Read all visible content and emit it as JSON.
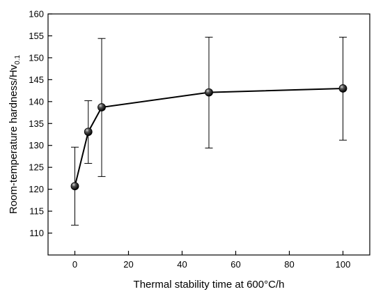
{
  "chart_data": {
    "type": "line",
    "title": "",
    "xlabel": "Thermal stability time at 600°C/h",
    "ylabel": {
      "main": "Room-temperature hardness/Hv",
      "subscript": "0.1"
    },
    "xlim": [
      -10,
      110
    ],
    "ylim": [
      105,
      160
    ],
    "x_ticks": [
      0,
      20,
      40,
      60,
      80,
      100
    ],
    "y_ticks": [
      110,
      115,
      120,
      125,
      130,
      135,
      140,
      145,
      150,
      155,
      160
    ],
    "grid": false,
    "legend": "none",
    "line_color": "#000000",
    "marker": "filled-sphere",
    "series": [
      {
        "x": [
          0,
          5,
          10,
          50,
          100
        ],
        "y": [
          120.7,
          133.1,
          138.7,
          142.1,
          143.0
        ],
        "error_low": [
          111.8,
          125.9,
          122.9,
          129.4,
          131.2
        ],
        "error_high": [
          129.6,
          140.2,
          154.4,
          154.7,
          154.7
        ]
      }
    ]
  }
}
